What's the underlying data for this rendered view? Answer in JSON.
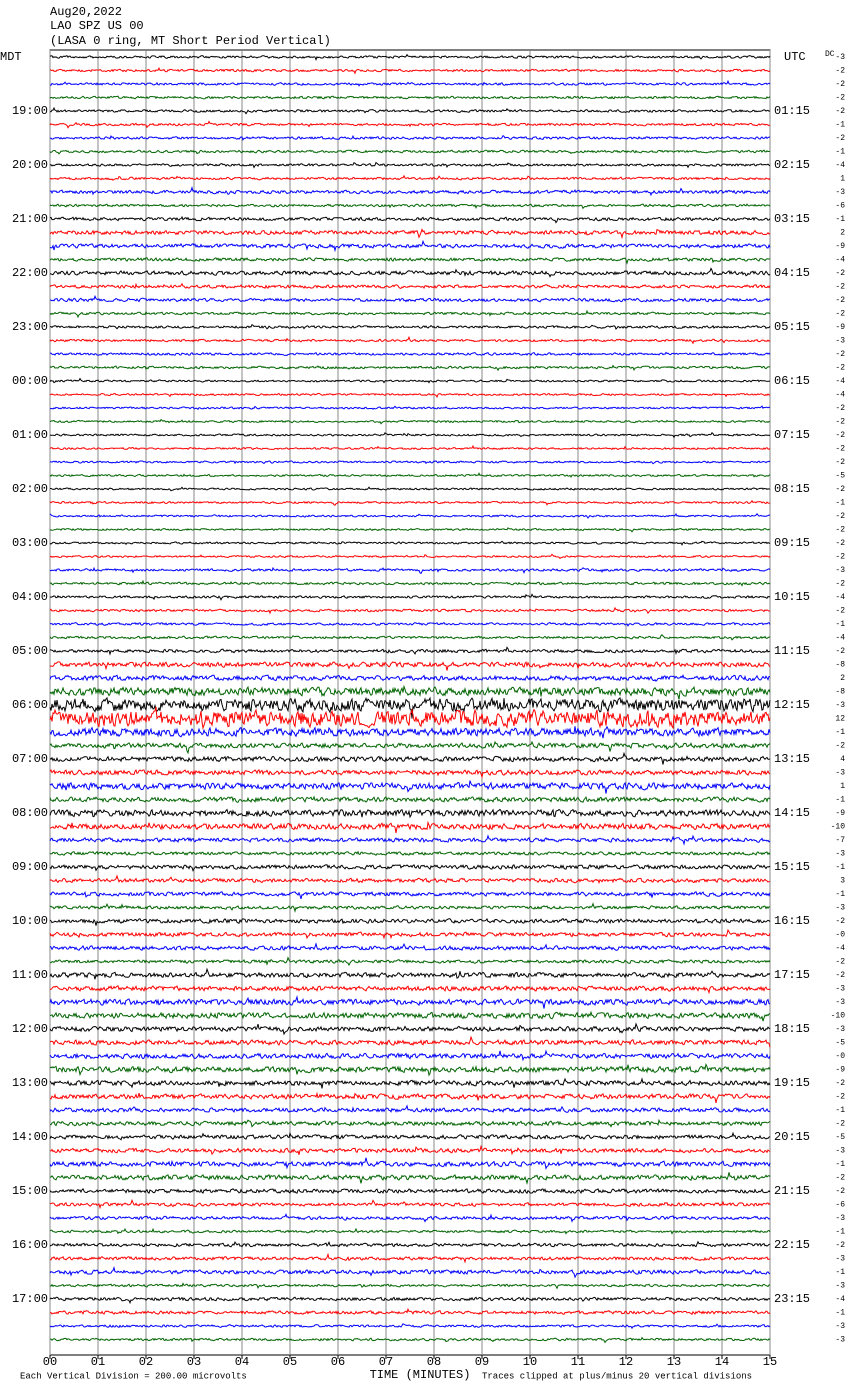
{
  "chart_data": {
    "type": "seismogram",
    "title": "Aug20,2022",
    "subtitle": "LAO SPZ US 00",
    "description": "(LASA 0 ring, MT Short Period Vertical)",
    "left_axis_title": "MDT",
    "right_axis_title": "UTC",
    "dc_title": "DC",
    "x_label": "TIME (MINUTES)",
    "footer_left": "Each Vertical Division =  200.00 microvolts",
    "footer_right": "Traces clipped at plus/minus 20 vertical divisions",
    "xlim": [
      0,
      15
    ],
    "xticks": [
      {
        "value": 0,
        "label": "00"
      },
      {
        "value": 1,
        "label": "01"
      },
      {
        "value": 2,
        "label": "02"
      },
      {
        "value": 3,
        "label": "03"
      },
      {
        "value": 4,
        "label": "04"
      },
      {
        "value": 5,
        "label": "05"
      },
      {
        "value": 6,
        "label": "06"
      },
      {
        "value": 7,
        "label": "07"
      },
      {
        "value": 8,
        "label": "08"
      },
      {
        "value": 9,
        "label": "09"
      },
      10,
      11,
      12,
      13,
      14,
      15
    ],
    "grid": true,
    "colors": [
      "#000000",
      "#ff0000",
      "#0000ff",
      "#006400"
    ],
    "left_labels": [
      "19:00",
      "20:00",
      "21:00",
      "22:00",
      "23:00",
      "00:00",
      "01:00",
      "02:00",
      "03:00",
      "04:00",
      "05:00",
      "06:00",
      "07:00",
      "08:00",
      "09:00",
      "10:00",
      "11:00",
      "12:00",
      "13:00",
      "14:00",
      "15:00",
      "16:00",
      "17:00"
    ],
    "right_labels": [
      "01:15",
      "02:15",
      "03:15",
      "04:15",
      "05:15",
      "06:15",
      "07:15",
      "08:15",
      "09:15",
      "10:15",
      "11:15",
      "12:15",
      "13:15",
      "14:15",
      "15:15",
      "16:15",
      "17:15",
      "18:15",
      "19:15",
      "20:15",
      "21:15",
      "22:15",
      "23:15"
    ],
    "dc_offsets": [
      -3,
      -2,
      -2,
      -2,
      -2,
      -1,
      -2,
      -1,
      -4,
      1,
      -3,
      -6,
      -1,
      2,
      -9,
      -4,
      -2,
      -2,
      -2,
      -2,
      -9,
      -3,
      -2,
      -2,
      -4,
      -4,
      -2,
      -2,
      -2,
      -2,
      -2,
      -5,
      -2,
      -1,
      -2,
      -2,
      -2,
      -2,
      -3,
      -2,
      -4,
      -2,
      -1,
      -4,
      -2,
      -8,
      2,
      -8,
      -3,
      12,
      -1,
      -2,
      4,
      -3,
      1,
      -1,
      -9,
      -10,
      -7,
      -3,
      -1,
      3,
      -1,
      -3,
      -2,
      {
        "value": 0,
        "label": "-0"
      },
      -4,
      -2,
      -2,
      -3,
      -3,
      -10,
      -3,
      -5,
      {
        "value": 0,
        "label": "-0"
      },
      -9,
      -2,
      -2,
      -1,
      -2,
      -5,
      -3,
      -1,
      -2,
      -2,
      -6,
      -3,
      -1,
      -2,
      -3,
      -1,
      -3,
      -4,
      -1,
      -3,
      -3
    ],
    "amplitudes": [
      1.5,
      1.5,
      1.5,
      1.5,
      1.5,
      1.5,
      1.5,
      1.5,
      1.5,
      1.5,
      2,
      1.5,
      2,
      2.5,
      2.5,
      2,
      2.5,
      2,
      2,
      1.5,
      1.5,
      1.5,
      1.5,
      1.5,
      1.2,
      1.2,
      1.2,
      1.2,
      1.2,
      1.2,
      1.2,
      1.2,
      1.2,
      1.2,
      1.2,
      1.2,
      1.2,
      1.2,
      1.5,
      1.5,
      1.5,
      1.5,
      1.5,
      1.5,
      2,
      3,
      3,
      5,
      8,
      10,
      5,
      3,
      3,
      3,
      4,
      3,
      4,
      3.5,
      2.5,
      2,
      2.5,
      2.5,
      2.5,
      2,
      2.5,
      2.5,
      2.5,
      2,
      3,
      3,
      3.5,
      3.5,
      3,
      3,
      3,
      3.5,
      3,
      3,
      2.5,
      2.5,
      2.5,
      2.5,
      3,
      3,
      2.5,
      2,
      2,
      1.5,
      2,
      2,
      2.5,
      1.5,
      2,
      2,
      1.5,
      1.5
    ]
  }
}
